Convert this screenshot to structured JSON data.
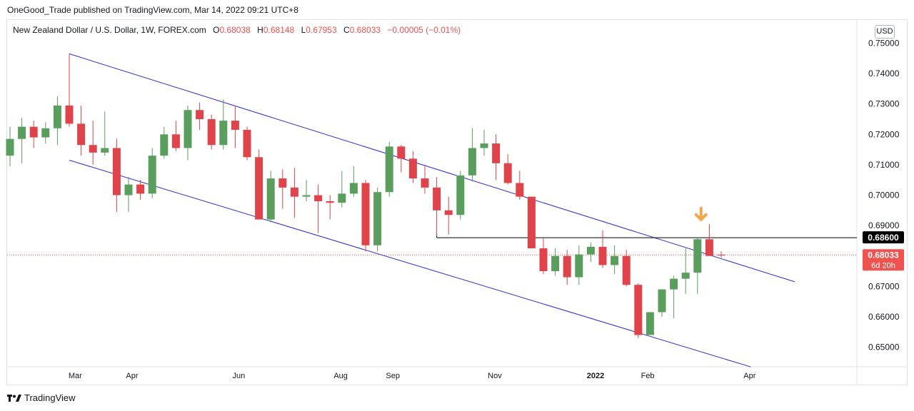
{
  "header": {
    "publisher": "OneGood_Trade published on TradingView.com, Mar 14, 2022 09:21 UTC+8"
  },
  "legend": {
    "symbol": "New Zealand Dollar / U.S. Dollar, 1W, FOREX.com",
    "o_label": "O",
    "o_value": "0.68038",
    "h_label": "H",
    "h_value": "0.68148",
    "l_label": "L",
    "l_value": "0.67953",
    "c_label": "C",
    "c_value": "0.68033",
    "change": "−0.00005 (−0.01%)"
  },
  "currency_label": "USD",
  "footer": {
    "brand": "TradingView"
  },
  "colors": {
    "up": "#5a9e5e",
    "down": "#e0444a",
    "channel": "#2b2bd6",
    "level": "#000000",
    "arrow": "#f5a54a",
    "price_tag": "#ef5350"
  },
  "chart_data": {
    "type": "candlestick",
    "title": "",
    "symbol": "NZDUSD",
    "timeframe": "1W",
    "ylim": [
      0.6435,
      0.7515
    ],
    "y_ticks": [
      "0.75000",
      "0.74000",
      "0.73000",
      "0.72000",
      "0.71000",
      "0.70000",
      "0.69000",
      "0.68000",
      "0.67000",
      "0.66000",
      "0.65000"
    ],
    "x_ticks": [
      {
        "label": "Mar",
        "index": 5.5
      },
      {
        "label": "Apr",
        "index": 10.3
      },
      {
        "label": "Jun",
        "index": 19.3
      },
      {
        "label": "Aug",
        "index": 27.9
      },
      {
        "label": "Sep",
        "index": 32.3
      },
      {
        "label": "Nov",
        "index": 40.9
      },
      {
        "label": "2022",
        "index": 49.4,
        "bold": true
      },
      {
        "label": "Feb",
        "index": 53.8
      },
      {
        "label": "Apr",
        "index": 62.4
      }
    ],
    "candles": [
      [
        0.713,
        0.7225,
        0.7095,
        0.7185
      ],
      [
        0.7185,
        0.7255,
        0.7105,
        0.7225
      ],
      [
        0.7225,
        0.7245,
        0.7155,
        0.719
      ],
      [
        0.719,
        0.724,
        0.717,
        0.722
      ],
      [
        0.722,
        0.7325,
        0.7165,
        0.7295
      ],
      [
        0.7295,
        0.7465,
        0.7225,
        0.7235
      ],
      [
        0.7235,
        0.7295,
        0.713,
        0.7165
      ],
      [
        0.7165,
        0.7245,
        0.71,
        0.714
      ],
      [
        0.714,
        0.7275,
        0.713,
        0.7155
      ],
      [
        0.7155,
        0.7185,
        0.6945,
        0.7
      ],
      [
        0.7,
        0.706,
        0.6945,
        0.7035
      ],
      [
        0.7035,
        0.705,
        0.6985,
        0.7005
      ],
      [
        0.7005,
        0.7155,
        0.699,
        0.713
      ],
      [
        0.713,
        0.7225,
        0.712,
        0.72
      ],
      [
        0.72,
        0.7245,
        0.7145,
        0.7155
      ],
      [
        0.7155,
        0.7295,
        0.7115,
        0.728
      ],
      [
        0.728,
        0.7305,
        0.7215,
        0.725
      ],
      [
        0.725,
        0.7265,
        0.715,
        0.7165
      ],
      [
        0.7165,
        0.7315,
        0.715,
        0.7245
      ],
      [
        0.7245,
        0.7295,
        0.7155,
        0.7215
      ],
      [
        0.7215,
        0.7225,
        0.7115,
        0.7125
      ],
      [
        0.7125,
        0.715,
        0.692,
        0.692
      ],
      [
        0.692,
        0.708,
        0.691,
        0.7055
      ],
      [
        0.7055,
        0.7085,
        0.6955,
        0.7025
      ],
      [
        0.7025,
        0.709,
        0.6925,
        0.6995
      ],
      [
        0.6995,
        0.705,
        0.698,
        0.7
      ],
      [
        0.7,
        0.7035,
        0.6875,
        0.698
      ],
      [
        0.698,
        0.7,
        0.692,
        0.6975
      ],
      [
        0.6975,
        0.708,
        0.696,
        0.7005
      ],
      [
        0.7005,
        0.7095,
        0.6995,
        0.704
      ],
      [
        0.704,
        0.705,
        0.6815,
        0.6835
      ],
      [
        0.6835,
        0.7025,
        0.6815,
        0.701
      ],
      [
        0.701,
        0.7175,
        0.6995,
        0.716
      ],
      [
        0.716,
        0.7165,
        0.7075,
        0.712
      ],
      [
        0.712,
        0.7145,
        0.704,
        0.7055
      ],
      [
        0.7055,
        0.71,
        0.7005,
        0.7025
      ],
      [
        0.7025,
        0.706,
        0.6865,
        0.695
      ],
      [
        0.695,
        0.6995,
        0.687,
        0.6935
      ],
      [
        0.6935,
        0.708,
        0.692,
        0.7065
      ],
      [
        0.7065,
        0.722,
        0.7045,
        0.7155
      ],
      [
        0.7155,
        0.7215,
        0.713,
        0.717
      ],
      [
        0.717,
        0.72,
        0.705,
        0.7105
      ],
      [
        0.7105,
        0.7135,
        0.7035,
        0.704
      ],
      [
        0.704,
        0.708,
        0.6985,
        0.6995
      ],
      [
        0.6995,
        0.6995,
        0.6825,
        0.6825
      ],
      [
        0.6825,
        0.686,
        0.674,
        0.675
      ],
      [
        0.675,
        0.6825,
        0.6735,
        0.68
      ],
      [
        0.68,
        0.682,
        0.6705,
        0.673
      ],
      [
        0.673,
        0.6835,
        0.6705,
        0.6805
      ],
      [
        0.6805,
        0.6845,
        0.678,
        0.683
      ],
      [
        0.683,
        0.6885,
        0.676,
        0.677
      ],
      [
        0.677,
        0.6835,
        0.674,
        0.68
      ],
      [
        0.68,
        0.682,
        0.67,
        0.6705
      ],
      [
        0.6705,
        0.671,
        0.653,
        0.654
      ],
      [
        0.654,
        0.6615,
        0.654,
        0.6615
      ],
      [
        0.6615,
        0.669,
        0.66,
        0.669
      ],
      [
        0.669,
        0.6735,
        0.6595,
        0.6725
      ],
      [
        0.6725,
        0.6825,
        0.6675,
        0.6745
      ],
      [
        0.6745,
        0.686,
        0.6675,
        0.6855
      ],
      [
        0.6855,
        0.6905,
        0.68,
        0.68
      ],
      [
        0.6804,
        0.6815,
        0.6795,
        0.6803
      ]
    ],
    "channel_upper": [
      [
        5,
        0.7465
      ],
      [
        66.2,
        0.6715
      ]
    ],
    "channel_lower": [
      [
        5,
        0.7115
      ],
      [
        62.5,
        0.6435
      ]
    ],
    "level": {
      "from_index": 36,
      "value": 0.686,
      "label": "0.68600"
    },
    "current_price": {
      "value": 0.68033,
      "label": "0.68033",
      "countdown": "6d 20h"
    },
    "arrow_marker": {
      "index": 58.3,
      "value": 0.691,
      "direction": "down"
    }
  }
}
